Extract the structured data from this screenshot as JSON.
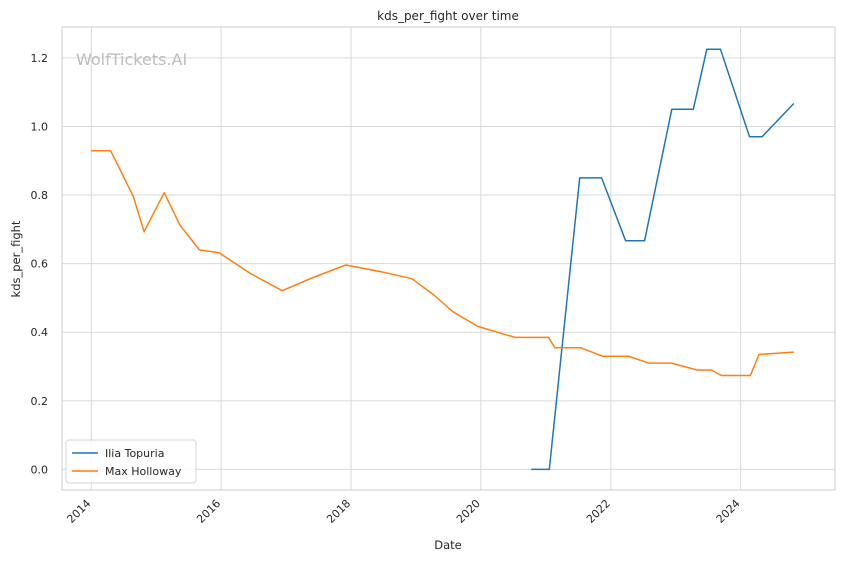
{
  "chart_data": {
    "type": "line",
    "title": "kds_per_fight over time",
    "xlabel": "Date",
    "ylabel": "kds_per_fight",
    "xlim": [
      "2013-07-20",
      "2025-06-15"
    ],
    "ylim": [
      -0.06,
      1.29
    ],
    "x_ticks": [
      "2014-01-01",
      "2016-01-01",
      "2018-01-01",
      "2020-01-01",
      "2022-01-01",
      "2024-01-01"
    ],
    "x_tick_labels": [
      "2014",
      "2016",
      "2018",
      "2020",
      "2022",
      "2024"
    ],
    "y_ticks": [
      0.0,
      0.2,
      0.4,
      0.6,
      0.8,
      1.0,
      1.2
    ],
    "y_tick_labels": [
      "0.0",
      "0.2",
      "0.4",
      "0.6",
      "0.8",
      "1.0",
      "1.2"
    ],
    "grid": true,
    "legend_position": "lower-left",
    "watermark": "WolfTickets.AI",
    "series": [
      {
        "name": "Ilia Topuria",
        "color": "#1f77b4",
        "points": [
          {
            "x": "2020-10-10",
            "y": 0.0
          },
          {
            "x": "2021-01-20",
            "y": 0.0
          },
          {
            "x": "2021-07-10",
            "y": 0.85
          },
          {
            "x": "2021-11-10",
            "y": 0.85
          },
          {
            "x": "2022-03-25",
            "y": 0.667
          },
          {
            "x": "2022-07-10",
            "y": 0.667
          },
          {
            "x": "2022-12-10",
            "y": 1.05
          },
          {
            "x": "2023-04-10",
            "y": 1.05
          },
          {
            "x": "2023-06-25",
            "y": 1.225
          },
          {
            "x": "2023-09-10",
            "y": 1.225
          },
          {
            "x": "2024-02-20",
            "y": 0.97
          },
          {
            "x": "2024-05-01",
            "y": 0.97
          },
          {
            "x": "2024-10-26",
            "y": 1.067
          }
        ]
      },
      {
        "name": "Max Holloway",
        "color": "#ff7f0e",
        "points": [
          {
            "x": "2014-01-01",
            "y": 0.929
          },
          {
            "x": "2014-04-20",
            "y": 0.929
          },
          {
            "x": "2014-08-25",
            "y": 0.796
          },
          {
            "x": "2014-10-25",
            "y": 0.693
          },
          {
            "x": "2015-02-15",
            "y": 0.807
          },
          {
            "x": "2015-05-15",
            "y": 0.712
          },
          {
            "x": "2015-09-01",
            "y": 0.64
          },
          {
            "x": "2015-12-20",
            "y": 0.632
          },
          {
            "x": "2016-06-15",
            "y": 0.571
          },
          {
            "x": "2016-12-10",
            "y": 0.521
          },
          {
            "x": "2017-05-25",
            "y": 0.558
          },
          {
            "x": "2017-12-02",
            "y": 0.596
          },
          {
            "x": "2018-07-01",
            "y": 0.575
          },
          {
            "x": "2018-12-09",
            "y": 0.556
          },
          {
            "x": "2019-04-15",
            "y": 0.507
          },
          {
            "x": "2019-07-27",
            "y": 0.46
          },
          {
            "x": "2019-12-14",
            "y": 0.417
          },
          {
            "x": "2020-07-11",
            "y": 0.385
          },
          {
            "x": "2021-01-16",
            "y": 0.385
          },
          {
            "x": "2021-02-20",
            "y": 0.355
          },
          {
            "x": "2021-07-15",
            "y": 0.355
          },
          {
            "x": "2021-11-15",
            "y": 0.33
          },
          {
            "x": "2022-04-10",
            "y": 0.33
          },
          {
            "x": "2022-08-01",
            "y": 0.31
          },
          {
            "x": "2022-12-10",
            "y": 0.31
          },
          {
            "x": "2023-05-01",
            "y": 0.29
          },
          {
            "x": "2023-07-20",
            "y": 0.29
          },
          {
            "x": "2023-09-15",
            "y": 0.274
          },
          {
            "x": "2024-02-25",
            "y": 0.274
          },
          {
            "x": "2024-04-13",
            "y": 0.335
          },
          {
            "x": "2024-10-26",
            "y": 0.342
          }
        ]
      }
    ]
  }
}
